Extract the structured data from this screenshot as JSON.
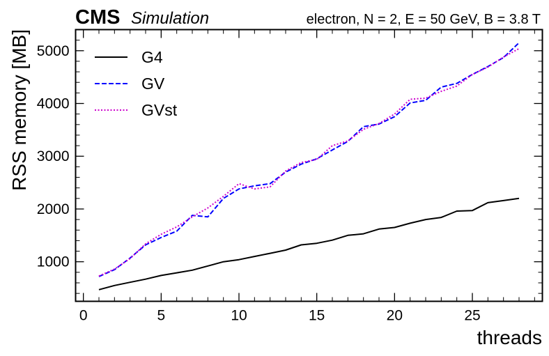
{
  "header": {
    "experiment": "CMS",
    "status": "Simulation",
    "info": "electron, N = 2, E = 50 GeV, B = 3.8 T"
  },
  "chart_data": {
    "type": "line",
    "xlabel": "threads",
    "ylabel": "RSS memory [MB]",
    "xlim": [
      -0.5,
      29.5
    ],
    "ylim": [
      250,
      5400
    ],
    "xticks": [
      0,
      5,
      10,
      15,
      20,
      25
    ],
    "yticks": [
      1000,
      2000,
      3000,
      4000,
      5000
    ],
    "grid": false,
    "legend_position": "top-left",
    "x": [
      1,
      2,
      3,
      4,
      5,
      6,
      7,
      8,
      9,
      10,
      11,
      12,
      13,
      14,
      15,
      16,
      17,
      18,
      19,
      20,
      21,
      22,
      23,
      24,
      25,
      26,
      27,
      28
    ],
    "series": [
      {
        "name": "G4",
        "color": "#000000",
        "style": "solid",
        "values": [
          470,
          550,
          610,
          670,
          740,
          790,
          840,
          920,
          1000,
          1040,
          1100,
          1160,
          1220,
          1320,
          1350,
          1410,
          1500,
          1530,
          1620,
          1650,
          1730,
          1800,
          1840,
          1960,
          1970,
          2120,
          2160,
          2200
        ]
      },
      {
        "name": "GV",
        "color": "#0000ff",
        "style": "dashed",
        "values": [
          720,
          850,
          1070,
          1320,
          1460,
          1580,
          1880,
          1850,
          2200,
          2380,
          2440,
          2480,
          2700,
          2850,
          2950,
          3120,
          3280,
          3560,
          3610,
          3750,
          4010,
          4060,
          4310,
          4380,
          4550,
          4700,
          4870,
          5150
        ]
      },
      {
        "name": "GVst",
        "color": "#cc00cc",
        "style": "dotted",
        "values": [
          730,
          860,
          1060,
          1340,
          1520,
          1660,
          1850,
          2020,
          2240,
          2480,
          2380,
          2420,
          2720,
          2880,
          2940,
          3200,
          3290,
          3510,
          3620,
          3800,
          4080,
          4100,
          4230,
          4330,
          4550,
          4690,
          4880,
          5040
        ]
      }
    ]
  }
}
